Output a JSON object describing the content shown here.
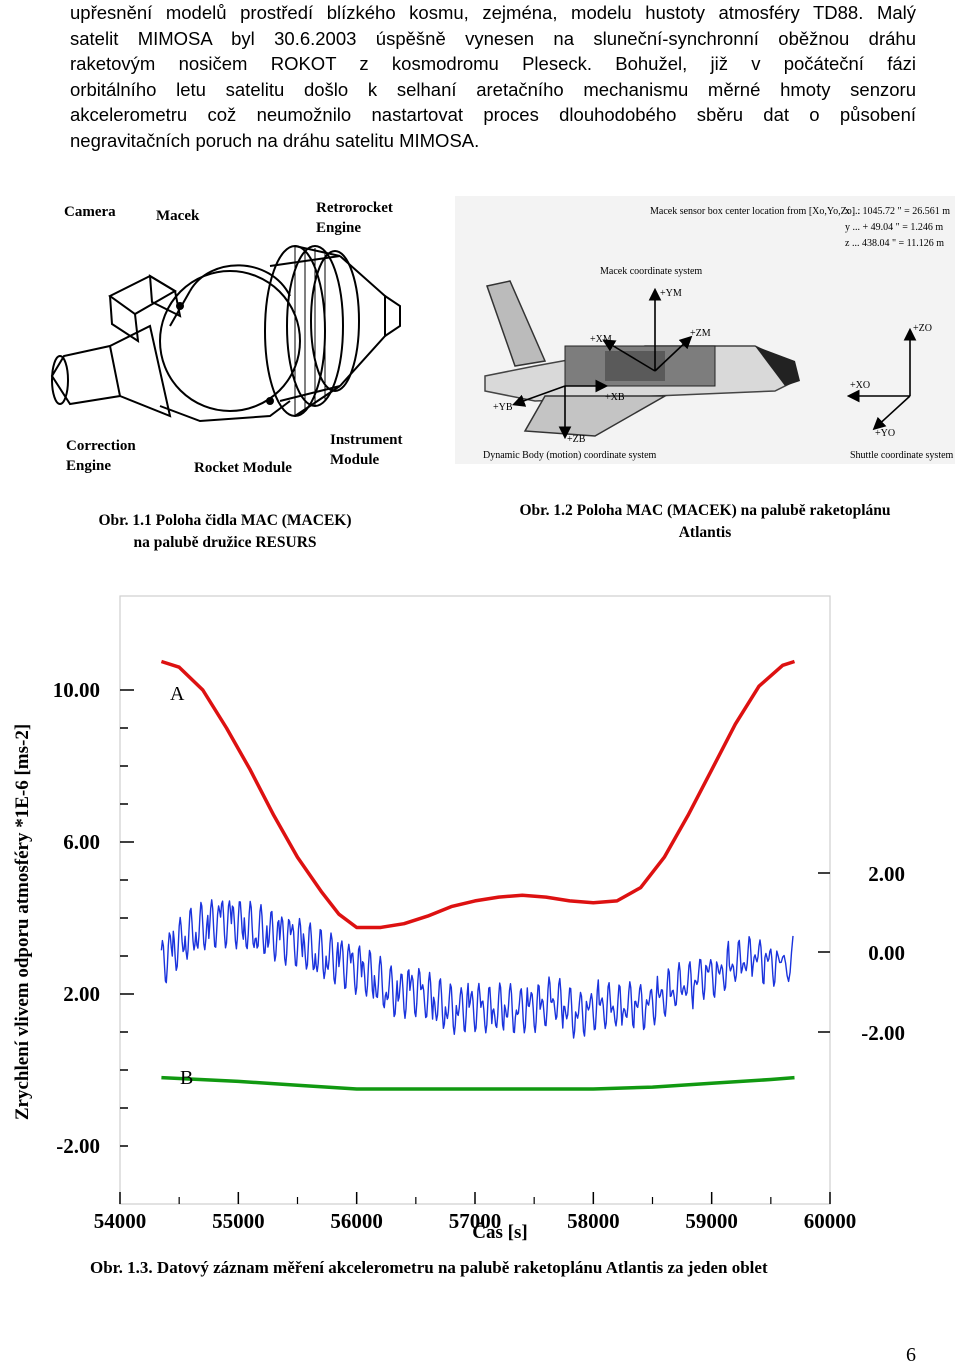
{
  "paragraph": {
    "lines": [
      "upřesnění modelů prostředí blízkého kosmu, zejména, modelu hustoty atmosféry TD88. Malý",
      "satelit MIMOSA byl 30.6.2003 úspěšně vynesen na sluneční-synchronní oběžnou dráhu",
      "raketovým nosičem ROKOT z kosmodromu Pleseck.  Bohužel, již v počáteční fázi",
      "orbitálního letu satelitu došlo k selhaní aretačního mechanismu měrné hmoty senzoru",
      "akcelerometru což neumožnilo nastartovat proces dlouhodobého sběru dat o působení",
      "negravitačních poruch na dráhu satelitu MIMOSA."
    ]
  },
  "figure1": {
    "labels": {
      "camera": "Camera",
      "macek": "Macek",
      "retrorocket": "Retrorocket\nEngine",
      "correction": "Correction\nEngine",
      "rocket_module": "Rocket Module",
      "instrument": "Instrument\nModule"
    },
    "caption_line1": "Obr. 1.1 Poloha čidla MAC (MACEK)",
    "caption_line2": "na palubě družice RESURS"
  },
  "figure2": {
    "labels": {
      "sensor_location": "Macek sensor box center location from [Xo,Yo,Zo] :",
      "x_val": "x ... 1045.72 \" = 26.561 m",
      "y_val": "y ... + 49.04 \" = 1.246 m",
      "z_val": "z ... 438.04 \" = 11.126 m",
      "macek_coord": "Macek coordinate system",
      "dynamic_body": "Dynamic Body (motion) coordinate system",
      "shuttle_coord": "Shuttle coordinate system",
      "ym": "+YM",
      "zm": "+ZM",
      "xm": "+XM",
      "xb": "+XB",
      "yb": "+YB",
      "zb": "+ZB",
      "zo": "+ZO",
      "xo": "+XO",
      "yo": "+YO"
    },
    "caption_line1": "Obr. 1.2 Poloha  MAC (MACEK) na palubě raketoplánu",
    "caption_line2": "Atlantis"
  },
  "chart_data": {
    "type": "line",
    "xlabel": "Čas [s]",
    "ylabel": "Zrychlení vlivem odporu atmosféry *1E-6 [ms-2]",
    "x_ticks": [
      "54000",
      "55000",
      "56000",
      "57000",
      "58000",
      "59000",
      "60000"
    ],
    "xlim": [
      54000,
      60000
    ],
    "y_left_ticks": [
      "10.00",
      "6.00",
      "2.00",
      "-2.00"
    ],
    "ylim_left": [
      -2,
      10
    ],
    "y_right_ticks": [
      "2.00",
      "0.00",
      "-2.00"
    ],
    "series": [
      {
        "name": "A",
        "color": "#dd1111",
        "x": [
          54350,
          54500,
          54700,
          54900,
          55100,
          55300,
          55500,
          55700,
          55850,
          56000,
          56200,
          56400,
          56600,
          56800,
          57000,
          57200,
          57400,
          57600,
          57800,
          58000,
          58200,
          58400,
          58600,
          58800,
          59000,
          59200,
          59400,
          59600,
          59700
        ],
        "y": [
          10.75,
          10.6,
          10.0,
          9.0,
          7.9,
          6.7,
          5.6,
          4.7,
          4.1,
          3.75,
          3.75,
          3.85,
          4.05,
          4.3,
          4.45,
          4.55,
          4.6,
          4.55,
          4.45,
          4.4,
          4.45,
          4.8,
          5.6,
          6.7,
          7.9,
          9.1,
          10.1,
          10.65,
          10.75
        ]
      },
      {
        "name": "B",
        "color": "#119911",
        "x": [
          54350,
          55000,
          55500,
          56000,
          56500,
          57000,
          57500,
          58000,
          58500,
          59000,
          59500,
          59700
        ],
        "y": [
          -0.2,
          -0.3,
          -0.4,
          -0.5,
          -0.5,
          -0.5,
          -0.5,
          -0.5,
          -0.45,
          -0.35,
          -0.25,
          -0.2
        ]
      },
      {
        "name": "",
        "color": "#1a33dd",
        "x": [
          54350,
          54450,
          54550,
          54650,
          54750,
          54850,
          54950,
          55050,
          55150,
          55250,
          55350,
          55450,
          55550,
          55650,
          55750,
          55850,
          55950,
          56050,
          56150,
          56250,
          56350,
          56450,
          56550,
          56650,
          56750,
          56850,
          56950,
          57050,
          57150,
          57250,
          57350,
          57450,
          57550,
          57650,
          57750,
          57850,
          57950,
          58050,
          58150,
          58250,
          58350,
          58450,
          58550,
          58650,
          58750,
          58850,
          58950,
          59050,
          59150,
          59250,
          59350,
          59450,
          59550,
          59700
        ],
        "y": [
          2.8,
          3.2,
          3.5,
          3.7,
          3.8,
          3.9,
          3.9,
          3.8,
          3.7,
          3.6,
          3.5,
          3.4,
          3.3,
          3.1,
          3.0,
          2.9,
          2.7,
          2.6,
          2.4,
          2.2,
          2.0,
          2.1,
          2.0,
          1.8,
          1.7,
          1.6,
          1.7,
          1.6,
          1.5,
          1.7,
          1.6,
          1.7,
          1.6,
          1.8,
          1.7,
          1.5,
          1.6,
          1.7,
          1.6,
          1.6,
          1.8,
          1.7,
          1.9,
          2.0,
          2.2,
          2.3,
          2.6,
          2.5,
          2.7,
          2.8,
          3.0,
          2.9,
          2.8,
          2.9
        ]
      }
    ],
    "annotations": [
      "A",
      "B"
    ],
    "grid": false
  },
  "fig3_caption": "Obr. 1.3. Datový záznam měření akcelerometru na palubě raketoplánu Atlantis za jeden oblet",
  "page_number": "6"
}
